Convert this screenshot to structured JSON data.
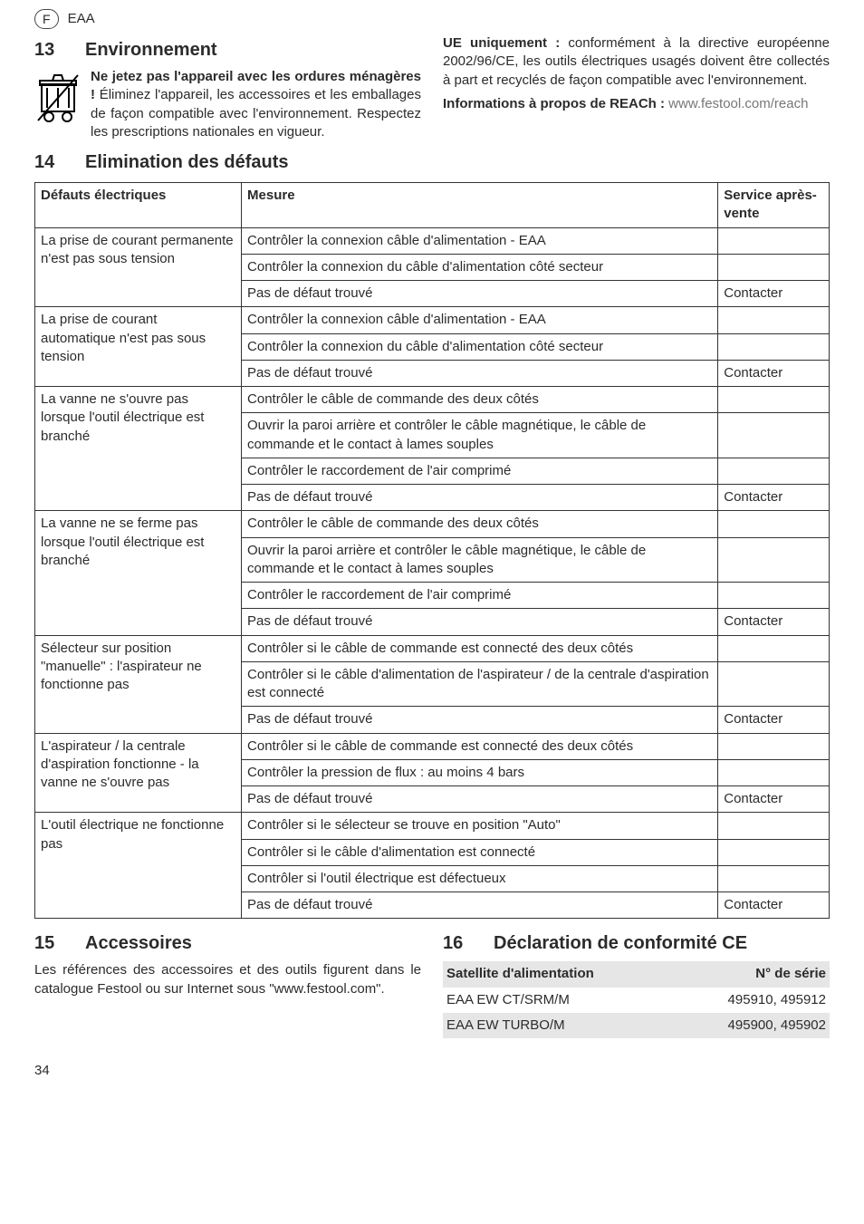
{
  "header": {
    "lang": "F",
    "product": "EAA"
  },
  "sect13": {
    "num": "13",
    "title": "Environnement",
    "para": "Ne jetez pas l'appareil avec les ordures ménagères ! Éliminez l'appareil, les accessoires et les emballages de façon compatible avec l'environnement. Respectez les prescriptions nationales en vigueur.",
    "bold_lead": "Ne jetez pas l'appareil avec les ordures ménagères !",
    "rightcol": {
      "eu_bold": "UE uniquement :",
      "eu_rest": " conformément à la directive européenne 2002/96/CE, les outils électriques usagés doivent être collectés à part et recyclés de façon compatible avec l'environnement.",
      "reach_bold": "Informations à propos de REACh :",
      "reach_rest": " www.festool.com/reach"
    }
  },
  "sect14": {
    "num": "14",
    "title": "Elimination des défauts",
    "headers": [
      "Défauts électriques",
      "Mesure",
      "Service après-vente"
    ],
    "groups": [
      {
        "fault": "La prise de courant permanente n'est pas sous tension",
        "rows": [
          [
            "Contrôler la connexion câble d'alimentation - EAA",
            ""
          ],
          [
            "Contrôler la connexion du câble d'alimentation côté secteur",
            ""
          ],
          [
            "Pas de défaut trouvé",
            "Contacter"
          ]
        ]
      },
      {
        "fault": "La prise de courant automatique n'est pas sous tension",
        "rows": [
          [
            "Contrôler la connexion câble d'alimentation - EAA",
            ""
          ],
          [
            "Contrôler la connexion du câble d'alimentation côté secteur",
            ""
          ],
          [
            "Pas de défaut trouvé",
            "Contacter"
          ]
        ]
      },
      {
        "fault": "La vanne ne s'ouvre pas lorsque l'outil électrique est branché",
        "rows": [
          [
            "Contrôler le câble de commande des deux côtés",
            ""
          ],
          [
            "Ouvrir la paroi arrière et contrôler le câble magnétique, le câble de commande et le contact à lames souples",
            ""
          ],
          [
            "Contrôler le raccordement de l'air comprimé",
            ""
          ],
          [
            "Pas de défaut trouvé",
            "Contacter"
          ]
        ]
      },
      {
        "fault": "La vanne ne se ferme pas lorsque l'outil électrique est branché",
        "rows": [
          [
            "Contrôler le câble de commande des deux côtés",
            ""
          ],
          [
            "Ouvrir la paroi arrière et contrôler le câble magnétique, le câble de commande et le contact à lames souples",
            ""
          ],
          [
            "Contrôler le raccordement de l'air comprimé",
            ""
          ],
          [
            "Pas de défaut trouvé",
            "Contacter"
          ]
        ]
      },
      {
        "fault": "Sélecteur sur position \"manuelle\" : l'aspirateur ne fonctionne pas",
        "rows": [
          [
            "Contrôler si le câble de commande est connecté des deux côtés",
            ""
          ],
          [
            "Contrôler si le câble d'alimentation de l'aspirateur / de la centrale d'aspiration est connecté",
            ""
          ],
          [
            "Pas de défaut trouvé",
            "Contacter"
          ]
        ]
      },
      {
        "fault": "L'aspirateur / la centrale d'aspiration fonctionne - la vanne ne s'ouvre pas",
        "rows": [
          [
            "Contrôler si le câble de commande est connecté des deux côtés",
            ""
          ],
          [
            "Contrôler la pression de flux : au moins 4 bars",
            ""
          ],
          [
            "Pas de défaut trouvé",
            "Contacter"
          ]
        ]
      },
      {
        "fault": "L'outil électrique ne fonctionne pas",
        "rows": [
          [
            "Contrôler si le sélecteur se trouve en position \"Auto\"",
            ""
          ],
          [
            "Contrôler si le câble d'alimentation est connecté",
            ""
          ],
          [
            "Contrôler si l'outil électrique est défectueux",
            ""
          ],
          [
            "Pas de défaut trouvé",
            "Contacter"
          ]
        ]
      }
    ]
  },
  "sect15": {
    "num": "15",
    "title": "Accessoires",
    "para": "Les références des accessoires et des outils figurent dans le catalogue Festool ou sur Internet sous \"www.festool.com\"."
  },
  "sect16": {
    "num": "16",
    "title": "Déclaration de conformité CE",
    "headers": [
      "Satellite d'alimentation",
      "N° de série"
    ],
    "rows": [
      [
        "EAA EW CT/SRM/M",
        "495910, 495912"
      ],
      [
        "EAA EW TURBO/M",
        "495900, 495902"
      ]
    ]
  },
  "pagenum": "34"
}
